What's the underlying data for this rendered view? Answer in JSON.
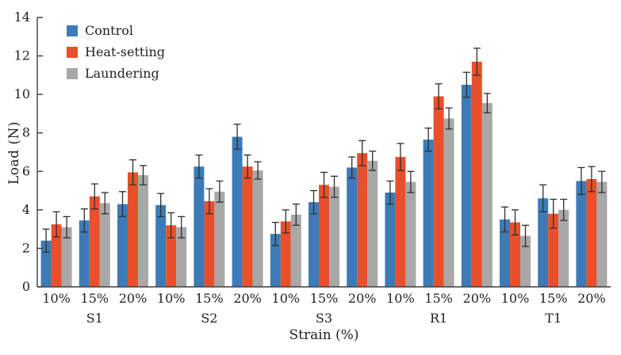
{
  "chart_data": {
    "type": "bar",
    "title": "",
    "xlabel": "Strain (%)",
    "ylabel": "Load (N)",
    "ylim": [
      0,
      14
    ],
    "yticks": [
      0,
      2,
      4,
      6,
      8,
      10,
      12,
      14
    ],
    "grid": false,
    "legend_position": "top-left-inside",
    "groups": [
      "S1",
      "S2",
      "S3",
      "R1",
      "T1"
    ],
    "strain_levels": [
      "10%",
      "15%",
      "20%"
    ],
    "series": [
      {
        "name": "Control",
        "color": "#3c7bb7",
        "values": [
          2.4,
          3.45,
          4.3,
          4.25,
          6.25,
          7.8,
          2.75,
          4.4,
          6.2,
          4.9,
          7.65,
          10.5,
          3.5,
          4.6,
          5.5
        ],
        "errors": [
          0.6,
          0.6,
          0.65,
          0.6,
          0.6,
          0.65,
          0.6,
          0.6,
          0.55,
          0.6,
          0.6,
          0.65,
          0.65,
          0.7,
          0.7
        ]
      },
      {
        "name": "Heat-setting",
        "color": "#e8502b",
        "values": [
          3.25,
          4.7,
          5.95,
          3.2,
          4.45,
          6.25,
          3.4,
          5.3,
          6.95,
          6.75,
          9.9,
          11.7,
          3.35,
          3.8,
          5.6
        ],
        "errors": [
          0.65,
          0.65,
          0.65,
          0.65,
          0.65,
          0.6,
          0.6,
          0.65,
          0.65,
          0.7,
          0.65,
          0.7,
          0.65,
          0.75,
          0.65
        ]
      },
      {
        "name": "Laundering",
        "color": "#a8a8a8",
        "values": [
          3.1,
          4.35,
          5.8,
          3.1,
          4.95,
          6.05,
          3.75,
          5.2,
          6.55,
          5.45,
          8.75,
          9.55,
          2.65,
          4.0,
          5.45
        ],
        "errors": [
          0.55,
          0.55,
          0.5,
          0.55,
          0.55,
          0.45,
          0.55,
          0.55,
          0.5,
          0.55,
          0.55,
          0.5,
          0.55,
          0.55,
          0.55
        ]
      }
    ],
    "colors": {
      "axis": "#3f3f3f",
      "text": "#222222",
      "errorbar": "#2e2e2e",
      "background": "#ffffff"
    }
  }
}
